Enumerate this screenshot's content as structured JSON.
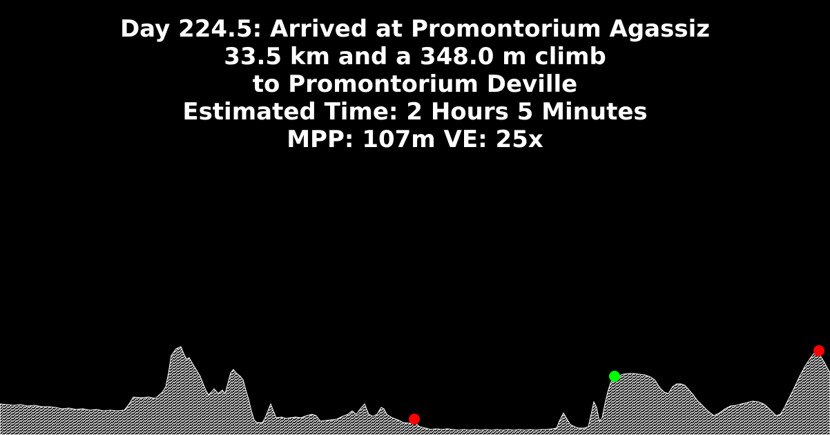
{
  "header": {
    "title": "Day 224.5: Arrived at Promontorium Agassiz",
    "distance_climb": "33.5 km and a 348.0 m climb",
    "destination": "to Promontorium Deville",
    "estimated_time": "Estimated Time: 2 Hours 5 Minutes",
    "scale": "MPP: 107m VE: 25x"
  },
  "colors": {
    "background": "#000000",
    "text": "#ffffff",
    "terrain": "#ffffff",
    "marker_current": "#00ff00",
    "marker_waypoint": "#ff0000"
  }
}
